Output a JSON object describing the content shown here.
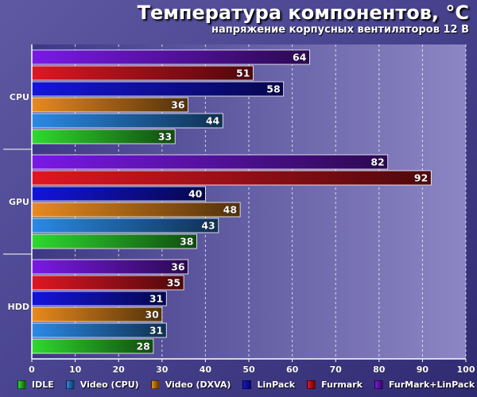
{
  "chart_data": {
    "type": "bar",
    "orientation": "horizontal",
    "title": "Температура компонентов, °C",
    "subtitle": "напряжение корпусных вентиляторов 12 В",
    "categories": [
      "CPU",
      "GPU",
      "HDD"
    ],
    "series": [
      {
        "name": "FurMark+LinPack",
        "color": "#7a19e6",
        "values": [
          64,
          82,
          36
        ]
      },
      {
        "name": "Furmark",
        "color": "#e01622",
        "values": [
          51,
          92,
          35
        ]
      },
      {
        "name": "LinPack",
        "color": "#1414dc",
        "values": [
          58,
          40,
          31
        ]
      },
      {
        "name": "Video (DXVA)",
        "color": "#e88a1e",
        "values": [
          36,
          48,
          30
        ]
      },
      {
        "name": "Video (CPU)",
        "color": "#2a8ae6",
        "values": [
          44,
          43,
          31
        ]
      },
      {
        "name": "IDLE",
        "color": "#2fd92f",
        "values": [
          33,
          38,
          28
        ]
      }
    ],
    "legend_order": [
      "IDLE",
      "Video (CPU)",
      "Video (DXVA)",
      "LinPack",
      "Furmark",
      "FurMark+LinPack"
    ],
    "xlim": [
      0,
      100
    ],
    "x_ticks": [
      0,
      10,
      20,
      30,
      40,
      50,
      60,
      70,
      80,
      90,
      100
    ],
    "grid": true,
    "legend_position": "bottom"
  }
}
